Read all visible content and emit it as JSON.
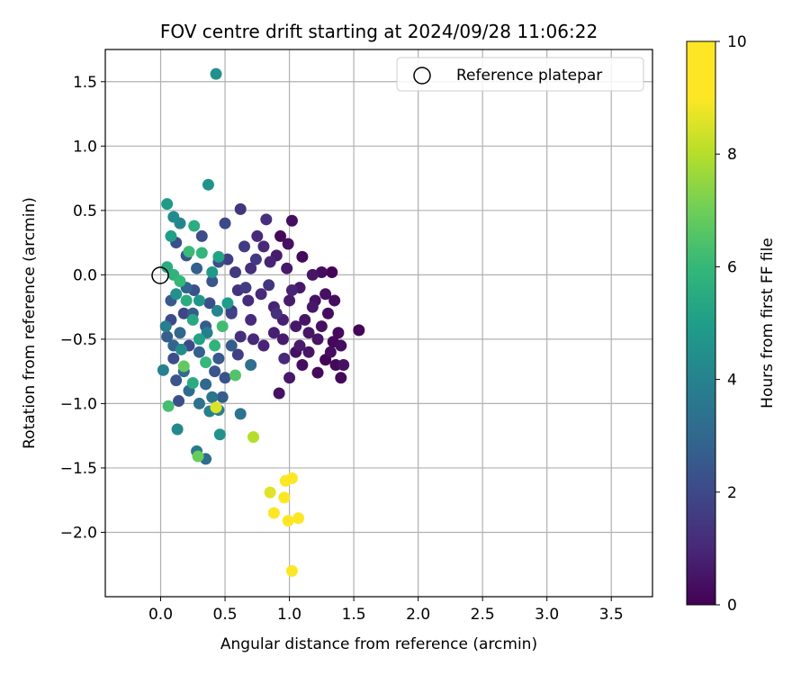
{
  "chart_data": {
    "type": "scatter",
    "title": "FOV centre drift starting at 2024/09/28 11:06:22",
    "xlabel": "Angular distance from reference (arcmin)",
    "ylabel": "Rotation from reference (arcmin)",
    "xlim": [
      -0.43,
      3.82
    ],
    "ylim": [
      -2.5,
      1.75
    ],
    "x_ticks": [
      0.0,
      0.5,
      1.0,
      1.5,
      2.0,
      2.5,
      3.0,
      3.5
    ],
    "x_tick_labels": [
      "0.0",
      "0.5",
      "1.0",
      "1.5",
      "2.0",
      "2.5",
      "3.0",
      "3.5"
    ],
    "y_ticks": [
      1.5,
      1.0,
      0.5,
      0.0,
      -0.5,
      -1.0,
      -1.5,
      -2.0
    ],
    "y_tick_labels": [
      "1.5",
      "1.0",
      "0.5",
      "0.0",
      "−0.5",
      "−1.0",
      "−1.5",
      "−2.0"
    ],
    "grid": true,
    "legend": {
      "placement": "top-right",
      "entries": [
        "Reference platepar"
      ]
    },
    "reference_point": {
      "x": 0.0,
      "y": 0.0,
      "label": "Reference platepar"
    },
    "colorbar": {
      "label": "Hours from first FF file",
      "colormap": "viridis",
      "range": [
        0,
        10
      ],
      "ticks": [
        0,
        2,
        4,
        6,
        8,
        10
      ],
      "tick_labels": [
        "0",
        "2",
        "4",
        "6",
        "8",
        "10"
      ]
    },
    "series": [
      {
        "points": [
          [
            1.02,
            0.42,
            0.3
          ],
          [
            0.93,
            0.3,
            0.2
          ],
          [
            0.99,
            0.24,
            0.4
          ],
          [
            1.1,
            0.14,
            0.2
          ],
          [
            1.25,
            0.02,
            0.3
          ],
          [
            1.33,
            0.02,
            0.1
          ],
          [
            1.54,
            -0.43,
            0.1
          ],
          [
            1.4,
            -0.55,
            0.3
          ],
          [
            1.42,
            -0.7,
            0.4
          ],
          [
            1.4,
            -0.8,
            0.2
          ],
          [
            1.3,
            -0.3,
            0.3
          ],
          [
            1.34,
            -0.52,
            0.2
          ],
          [
            1.2,
            -0.2,
            0.4
          ],
          [
            1.15,
            -0.45,
            0.5
          ],
          [
            1.05,
            -0.6,
            0.4
          ],
          [
            1.1,
            -0.7,
            0.3
          ],
          [
            1.22,
            -0.76,
            0.2
          ],
          [
            1.28,
            -0.66,
            0.1
          ],
          [
            1.18,
            0.0,
            0.5
          ],
          [
            1.08,
            -0.1,
            0.6
          ],
          [
            1.0,
            -0.2,
            0.7
          ],
          [
            0.95,
            -0.35,
            0.8
          ],
          [
            0.92,
            -0.92,
            0.4
          ],
          [
            1.0,
            -0.8,
            0.6
          ],
          [
            0.85,
            0.1,
            0.9
          ],
          [
            0.8,
            0.22,
            1.0
          ],
          [
            0.82,
            0.43,
            1.2
          ],
          [
            0.75,
            0.3,
            1.1
          ],
          [
            0.7,
            0.05,
            1.2
          ],
          [
            0.68,
            -0.2,
            1.1
          ],
          [
            0.72,
            -0.5,
            1.0
          ],
          [
            0.6,
            -0.12,
            1.3
          ],
          [
            0.55,
            -0.28,
            1.4
          ],
          [
            0.65,
            0.22,
            1.6
          ],
          [
            0.62,
            0.51,
            1.4
          ],
          [
            0.5,
            0.4,
            2.0
          ],
          [
            0.45,
            0.1,
            2.2
          ],
          [
            0.8,
            -0.55,
            0.9
          ],
          [
            0.88,
            -0.45,
            0.8
          ],
          [
            0.9,
            0.15,
            0.7
          ],
          [
            0.98,
            0.05,
            0.6
          ],
          [
            1.12,
            -0.35,
            0.5
          ],
          [
            1.25,
            -0.4,
            0.4
          ],
          [
            1.35,
            -0.2,
            0.3
          ],
          [
            1.38,
            -0.45,
            0.2
          ],
          [
            1.32,
            -0.6,
            0.3
          ],
          [
            1.15,
            -0.6,
            0.5
          ],
          [
            1.05,
            -0.4,
            0.6
          ],
          [
            0.95,
            -0.5,
            0.7
          ],
          [
            0.88,
            -0.25,
            0.9
          ],
          [
            0.78,
            -0.15,
            1.0
          ],
          [
            0.7,
            -0.35,
            1.1
          ],
          [
            0.62,
            -0.48,
            1.2
          ],
          [
            0.58,
            0.02,
            1.5
          ],
          [
            0.52,
            0.12,
            1.7
          ],
          [
            0.4,
            -0.05,
            2.4
          ],
          [
            0.35,
            -0.4,
            2.6
          ],
          [
            0.3,
            -0.6,
            2.8
          ],
          [
            0.25,
            -0.3,
            2.6
          ],
          [
            0.2,
            -0.1,
            2.9
          ],
          [
            0.15,
            -0.45,
            3.0
          ],
          [
            0.1,
            -0.55,
            2.9
          ],
          [
            0.05,
            -0.48,
            2.7
          ],
          [
            0.08,
            -0.2,
            2.5
          ],
          [
            0.12,
            0.25,
            2.2
          ],
          [
            0.2,
            0.15,
            2.4
          ],
          [
            0.28,
            0.05,
            2.7
          ],
          [
            0.45,
            -0.65,
            2.5
          ],
          [
            0.5,
            -0.8,
            2.3
          ],
          [
            0.55,
            -0.55,
            2.6
          ],
          [
            0.35,
            -0.85,
            3.0
          ],
          [
            0.3,
            -1.0,
            3.4
          ],
          [
            0.22,
            -0.9,
            3.2
          ],
          [
            0.18,
            -0.75,
            3.1
          ],
          [
            0.4,
            -0.95,
            3.5
          ],
          [
            0.45,
            -1.05,
            3.8
          ],
          [
            0.38,
            -1.06,
            4.0
          ],
          [
            0.62,
            -1.08,
            3.4
          ],
          [
            0.7,
            -0.7,
            3.3
          ],
          [
            0.28,
            -1.37,
            3.6
          ],
          [
            0.35,
            -1.43,
            3.2
          ],
          [
            0.46,
            -1.24,
            4.6
          ],
          [
            0.13,
            -1.2,
            4.2
          ],
          [
            0.02,
            -0.74,
            4.0
          ],
          [
            0.43,
            1.56,
            4.5
          ],
          [
            0.37,
            0.7,
            4.6
          ],
          [
            0.05,
            0.55,
            4.9
          ],
          [
            0.1,
            0.45,
            4.3
          ],
          [
            0.15,
            0.4,
            4.1
          ],
          [
            0.26,
            0.38,
            5.6
          ],
          [
            0.08,
            0.3,
            5.0
          ],
          [
            0.05,
            0.06,
            5.5
          ],
          [
            0.1,
            0.0,
            5.8
          ],
          [
            0.15,
            -0.05,
            6.0
          ],
          [
            0.2,
            -0.2,
            5.6
          ],
          [
            0.25,
            -0.35,
            5.4
          ],
          [
            0.3,
            -0.5,
            5.2
          ],
          [
            0.35,
            -0.68,
            6.0
          ],
          [
            0.42,
            -0.55,
            5.8
          ],
          [
            0.48,
            -0.4,
            6.2
          ],
          [
            0.52,
            -0.22,
            5.0
          ],
          [
            0.45,
            0.14,
            5.2
          ],
          [
            0.22,
            0.18,
            6.1
          ],
          [
            0.32,
            0.17,
            5.9
          ],
          [
            0.18,
            -0.71,
            6.8
          ],
          [
            0.58,
            -0.78,
            6.5
          ],
          [
            0.25,
            -0.84,
            5.5
          ],
          [
            0.06,
            -1.02,
            6.3
          ],
          [
            0.29,
            -1.41,
            6.9
          ],
          [
            0.43,
            -1.03,
            8.5
          ],
          [
            0.72,
            -1.26,
            8.0
          ],
          [
            0.85,
            -1.69,
            8.6
          ],
          [
            0.96,
            -1.73,
            9.2
          ],
          [
            0.97,
            -1.6,
            9.3
          ],
          [
            1.02,
            -1.58,
            9.4
          ],
          [
            0.88,
            -1.85,
            9.0
          ],
          [
            0.99,
            -1.91,
            9.5
          ],
          [
            1.07,
            -1.89,
            9.3
          ],
          [
            1.02,
            -2.3,
            10.0
          ],
          [
            0.08,
            -0.35,
            2.0
          ],
          [
            0.1,
            -0.65,
            2.1
          ],
          [
            0.12,
            -0.82,
            2.4
          ],
          [
            0.14,
            -0.98,
            2.2
          ],
          [
            0.18,
            -0.3,
            1.9
          ],
          [
            0.22,
            -0.55,
            2.0
          ],
          [
            0.26,
            -0.12,
            2.3
          ],
          [
            0.32,
            0.3,
            2.1
          ],
          [
            0.38,
            -0.22,
            2.2
          ],
          [
            0.42,
            -0.75,
            2.4
          ],
          [
            0.48,
            -0.95,
            2.6
          ],
          [
            0.55,
            -0.3,
            1.8
          ],
          [
            0.6,
            -0.62,
            1.7
          ],
          [
            0.66,
            -0.1,
            1.6
          ],
          [
            0.74,
            0.12,
            1.5
          ],
          [
            0.84,
            -0.08,
            1.4
          ],
          [
            0.9,
            -0.3,
            1.3
          ],
          [
            0.96,
            -0.65,
            1.0
          ],
          [
            1.02,
            -0.12,
            0.9
          ],
          [
            1.08,
            -0.55,
            0.7
          ],
          [
            1.18,
            -0.25,
            0.6
          ],
          [
            1.22,
            -0.5,
            0.5
          ],
          [
            1.28,
            -0.15,
            0.4
          ],
          [
            1.36,
            -0.7,
            0.2
          ],
          [
            0.4,
            0.02,
            4.8
          ],
          [
            0.3,
            -0.2,
            4.7
          ],
          [
            0.16,
            -0.58,
            4.4
          ],
          [
            0.12,
            -0.15,
            4.5
          ],
          [
            0.04,
            -0.4,
            3.8
          ],
          [
            0.36,
            -0.45,
            3.9
          ],
          [
            0.44,
            -0.28,
            4.1
          ]
        ]
      }
    ]
  }
}
